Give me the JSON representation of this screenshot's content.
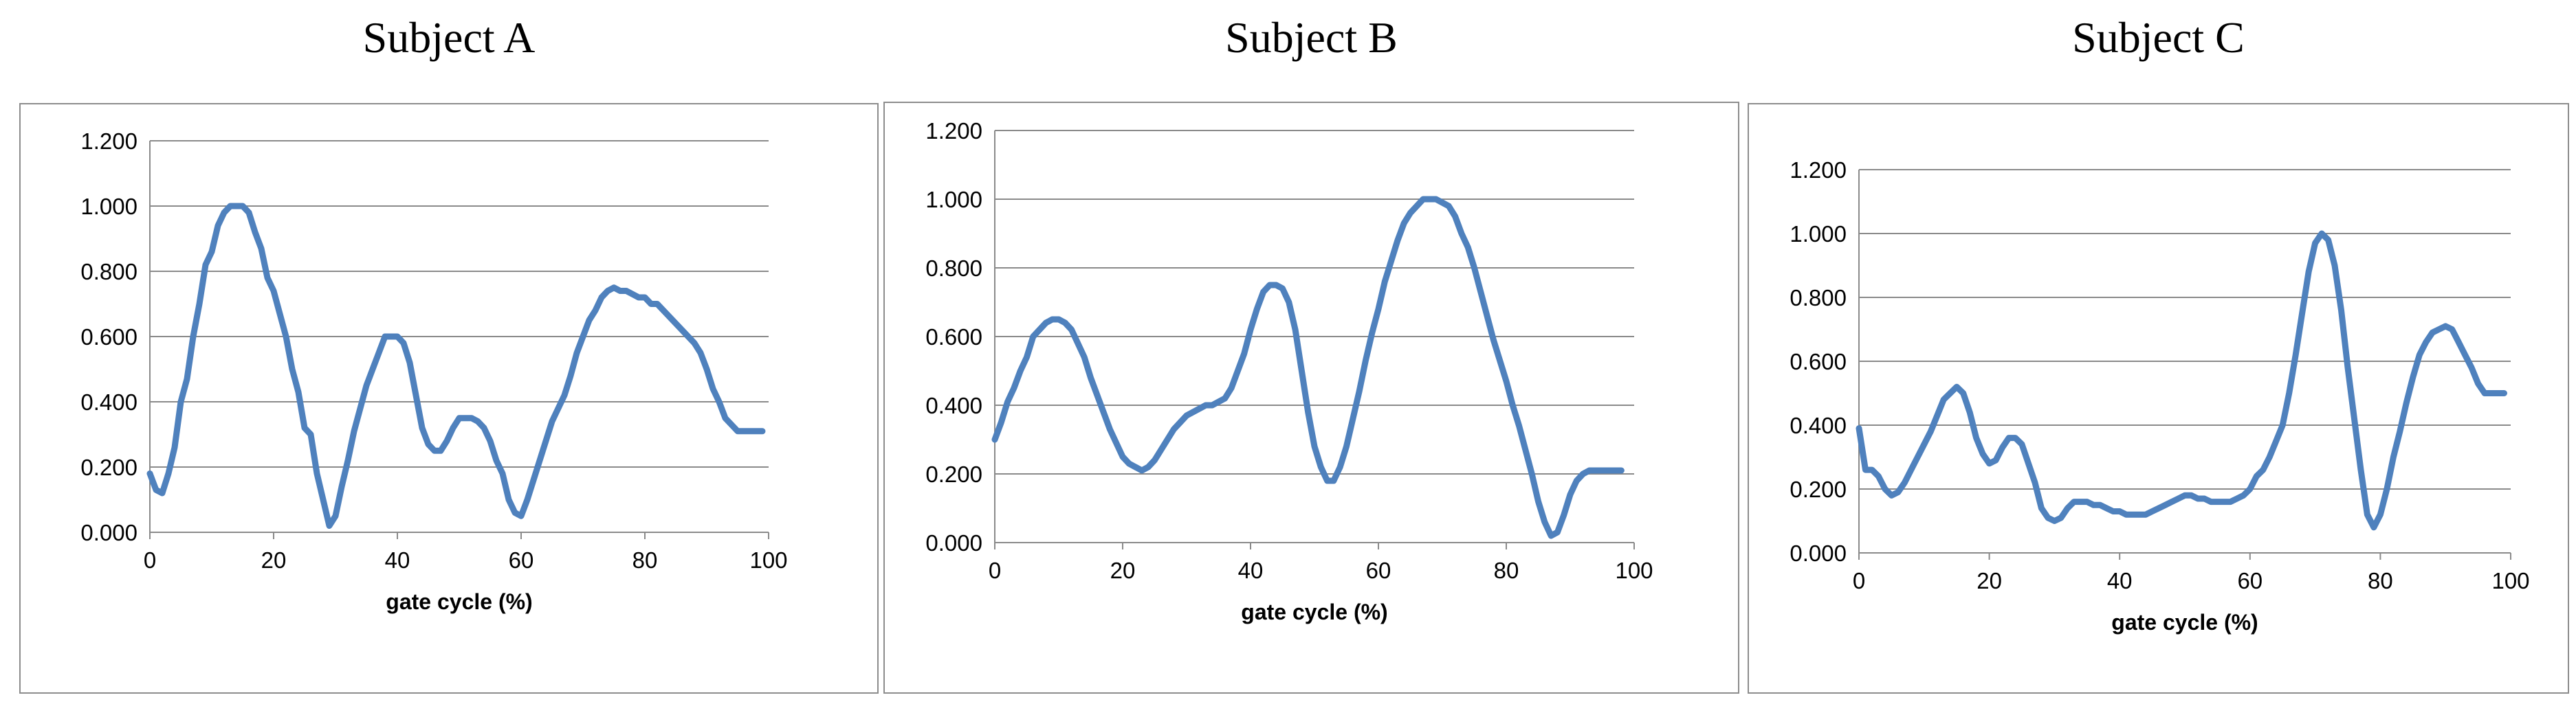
{
  "chart_data": [
    {
      "type": "line",
      "title": "Subject A",
      "xlabel": "gate cycle  (%)",
      "ylabel": "",
      "xlim": [
        0,
        100
      ],
      "ylim": [
        0,
        1.2
      ],
      "xticks": [
        "0",
        "20",
        "40",
        "60",
        "80",
        "100"
      ],
      "yticks": [
        "0.000",
        "0.200",
        "0.400",
        "0.600",
        "0.800",
        "1.000",
        "1.200"
      ],
      "grid": true,
      "legend": "none",
      "color": "#4f81bd",
      "series": [
        {
          "x": [
            0,
            1,
            2,
            3,
            4,
            5,
            6,
            7,
            8,
            9,
            10,
            11,
            12,
            13,
            14,
            15,
            16,
            17,
            18,
            19,
            20,
            21,
            22,
            23,
            24,
            25,
            26,
            27,
            28,
            29,
            30,
            31,
            32,
            33,
            34,
            35,
            36,
            37,
            38,
            39,
            40,
            41,
            42,
            43,
            44,
            45,
            46,
            47,
            48,
            49,
            50,
            51,
            52,
            53,
            54,
            55,
            56,
            57,
            58,
            59,
            60,
            61,
            62,
            63,
            64,
            65,
            66,
            67,
            68,
            69,
            70,
            71,
            72,
            73,
            74,
            75,
            76,
            77,
            78,
            79,
            80,
            81,
            82,
            83,
            84,
            85,
            86,
            87,
            88,
            89,
            90,
            91,
            92,
            93,
            94,
            95,
            96,
            97,
            98,
            99
          ],
          "values": [
            0.18,
            0.13,
            0.12,
            0.18,
            0.26,
            0.4,
            0.47,
            0.6,
            0.7,
            0.82,
            0.86,
            0.94,
            0.98,
            1.0,
            1.0,
            1.0,
            0.98,
            0.92,
            0.87,
            0.78,
            0.74,
            0.67,
            0.6,
            0.5,
            0.43,
            0.32,
            0.3,
            0.18,
            0.1,
            0.02,
            0.05,
            0.14,
            0.22,
            0.31,
            0.38,
            0.45,
            0.5,
            0.55,
            0.6,
            0.6,
            0.6,
            0.58,
            0.52,
            0.42,
            0.32,
            0.27,
            0.25,
            0.25,
            0.28,
            0.32,
            0.35,
            0.35,
            0.35,
            0.34,
            0.32,
            0.28,
            0.22,
            0.18,
            0.1,
            0.06,
            0.05,
            0.1,
            0.16,
            0.22,
            0.28,
            0.34,
            0.38,
            0.42,
            0.48,
            0.55,
            0.6,
            0.65,
            0.68,
            0.72,
            0.74,
            0.75,
            0.74,
            0.74,
            0.73,
            0.72,
            0.72,
            0.7,
            0.7,
            0.68,
            0.66,
            0.64,
            0.62,
            0.6,
            0.58,
            0.55,
            0.5,
            0.44,
            0.4,
            0.35,
            0.33,
            0.31,
            0.31,
            0.31,
            0.31,
            0.31
          ]
        }
      ]
    },
    {
      "type": "line",
      "title": "Subject B",
      "xlabel": "gate cycle  (%)",
      "ylabel": "",
      "xlim": [
        0,
        100
      ],
      "ylim": [
        0,
        1.2
      ],
      "xticks": [
        "0",
        "20",
        "40",
        "60",
        "80",
        "100"
      ],
      "yticks": [
        "0.000",
        "0.200",
        "0.400",
        "0.600",
        "0.800",
        "1.000",
        "1.200"
      ],
      "grid": true,
      "legend": "none",
      "color": "#4f81bd",
      "series": [
        {
          "x": [
            0,
            1,
            2,
            3,
            4,
            5,
            6,
            7,
            8,
            9,
            10,
            11,
            12,
            13,
            14,
            15,
            16,
            17,
            18,
            19,
            20,
            21,
            22,
            23,
            24,
            25,
            26,
            27,
            28,
            29,
            30,
            31,
            32,
            33,
            34,
            35,
            36,
            37,
            38,
            39,
            40,
            41,
            42,
            43,
            44,
            45,
            46,
            47,
            48,
            49,
            50,
            51,
            52,
            53,
            54,
            55,
            56,
            57,
            58,
            59,
            60,
            61,
            62,
            63,
            64,
            65,
            66,
            67,
            68,
            69,
            70,
            71,
            72,
            73,
            74,
            75,
            76,
            77,
            78,
            79,
            80,
            81,
            82,
            83,
            84,
            85,
            86,
            87,
            88,
            89,
            90,
            91,
            92,
            93,
            94,
            95,
            96,
            97,
            98
          ],
          "values": [
            0.3,
            0.35,
            0.41,
            0.45,
            0.5,
            0.54,
            0.6,
            0.62,
            0.64,
            0.65,
            0.65,
            0.64,
            0.62,
            0.58,
            0.54,
            0.48,
            0.43,
            0.38,
            0.33,
            0.29,
            0.25,
            0.23,
            0.22,
            0.21,
            0.22,
            0.24,
            0.27,
            0.3,
            0.33,
            0.35,
            0.37,
            0.38,
            0.39,
            0.4,
            0.4,
            0.41,
            0.42,
            0.45,
            0.5,
            0.55,
            0.62,
            0.68,
            0.73,
            0.75,
            0.75,
            0.74,
            0.7,
            0.62,
            0.5,
            0.38,
            0.28,
            0.22,
            0.18,
            0.18,
            0.22,
            0.28,
            0.36,
            0.44,
            0.53,
            0.61,
            0.68,
            0.76,
            0.82,
            0.88,
            0.93,
            0.96,
            0.98,
            1.0,
            1.0,
            1.0,
            0.99,
            0.98,
            0.95,
            0.9,
            0.86,
            0.8,
            0.73,
            0.66,
            0.59,
            0.53,
            0.47,
            0.4,
            0.34,
            0.27,
            0.2,
            0.12,
            0.06,
            0.02,
            0.03,
            0.08,
            0.14,
            0.18,
            0.2,
            0.21,
            0.21,
            0.21,
            0.21,
            0.21,
            0.21
          ]
        }
      ]
    },
    {
      "type": "line",
      "title": "Subject C",
      "xlabel": "gate cycle  (%)",
      "ylabel": "",
      "xlim": [
        0,
        100
      ],
      "ylim": [
        0,
        1.2
      ],
      "xticks": [
        "0",
        "20",
        "40",
        "60",
        "80",
        "100"
      ],
      "yticks": [
        "0.000",
        "0.200",
        "0.400",
        "0.600",
        "0.800",
        "1.000",
        "1.200"
      ],
      "grid": true,
      "legend": "none",
      "color": "#4f81bd",
      "series": [
        {
          "x": [
            0,
            1,
            2,
            3,
            4,
            5,
            6,
            7,
            8,
            9,
            10,
            11,
            12,
            13,
            14,
            15,
            16,
            17,
            18,
            19,
            20,
            21,
            22,
            23,
            24,
            25,
            26,
            27,
            28,
            29,
            30,
            31,
            32,
            33,
            34,
            35,
            36,
            37,
            38,
            39,
            40,
            41,
            42,
            43,
            44,
            45,
            46,
            47,
            48,
            49,
            50,
            51,
            52,
            53,
            54,
            55,
            56,
            57,
            58,
            59,
            60,
            61,
            62,
            63,
            64,
            65,
            66,
            67,
            68,
            69,
            70,
            71,
            72,
            73,
            74,
            75,
            76,
            77,
            78,
            79,
            80,
            81,
            82,
            83,
            84,
            85,
            86,
            87,
            88,
            89,
            90,
            91,
            92,
            93,
            94,
            95,
            96,
            97,
            98,
            99
          ],
          "values": [
            0.39,
            0.26,
            0.26,
            0.24,
            0.2,
            0.18,
            0.19,
            0.22,
            0.26,
            0.3,
            0.34,
            0.38,
            0.43,
            0.48,
            0.5,
            0.52,
            0.5,
            0.44,
            0.36,
            0.31,
            0.28,
            0.29,
            0.33,
            0.36,
            0.36,
            0.34,
            0.28,
            0.22,
            0.14,
            0.11,
            0.1,
            0.11,
            0.14,
            0.16,
            0.16,
            0.16,
            0.15,
            0.15,
            0.14,
            0.13,
            0.13,
            0.12,
            0.12,
            0.12,
            0.12,
            0.13,
            0.14,
            0.15,
            0.16,
            0.17,
            0.18,
            0.18,
            0.17,
            0.17,
            0.16,
            0.16,
            0.16,
            0.16,
            0.17,
            0.18,
            0.2,
            0.24,
            0.26,
            0.3,
            0.35,
            0.4,
            0.5,
            0.62,
            0.75,
            0.88,
            0.97,
            1.0,
            0.98,
            0.9,
            0.76,
            0.58,
            0.42,
            0.26,
            0.12,
            0.08,
            0.12,
            0.2,
            0.3,
            0.38,
            0.47,
            0.55,
            0.62,
            0.66,
            0.69,
            0.7,
            0.71,
            0.7,
            0.66,
            0.62,
            0.58,
            0.53,
            0.5,
            0.5,
            0.5,
            0.5
          ]
        }
      ]
    }
  ]
}
